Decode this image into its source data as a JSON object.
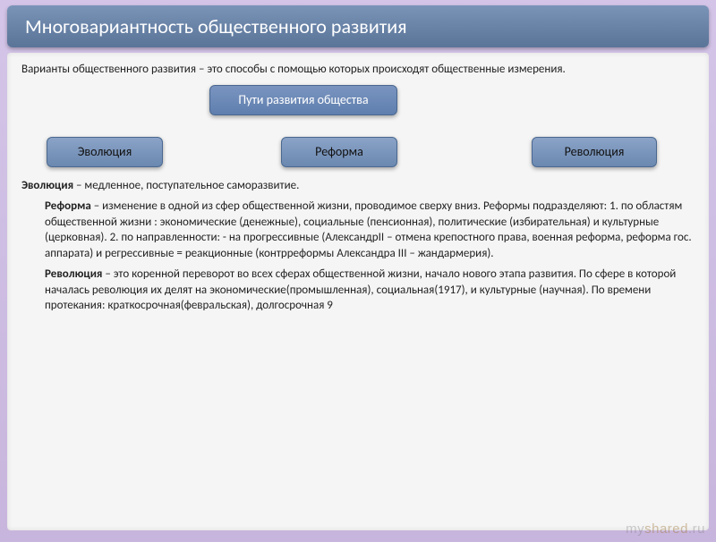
{
  "title": "Многовариантность общественного развития",
  "intro_term": "Варианты общественного развития",
  "intro_rest": " – это способы с помощью которых происходят общественные измерения.",
  "diagram": {
    "root": "Пути развития общества",
    "left": "Эволюция",
    "mid": "Реформа",
    "right": "Революция"
  },
  "evolution_term": "Эволюция",
  "evolution_rest": " – медленное, поступательное саморазвитие.",
  "reform_term": "Реформа",
  "reform_rest": " – изменение в одной из сфер общественной жизни, проводимое сверху вниз. Реформы подразделяют: 1. по областям общественной жизни : экономические (денежные), социальные (пенсионная), политические (избирательная) и культурные (церковная). 2. по направленности: - на прогрессивные (АлександрII – отмена крепостного права, военная реформа, реформа гос. аппарата) и регрессивные = реакционные (контрреформы Александра III – жандармерия).",
  "revolution_term": "Революция",
  "revolution_rest": " – это коренной переворот во всех сферах общественной жизни, начало нового этапа развития. По сфере в которой началась революция их делят на экономические(промышленная), социальная(1917),  и культурные (научная). По времени протекания: краткосрочная(февральская), долгосрочная 9",
  "watermark_my": "my",
  "watermark_shared": "shared",
  "watermark_ru": ".ru",
  "colors": {
    "bg_gradient_top": "#d4c5e8",
    "bg_gradient_bottom": "#c8b5dd",
    "title_bg_top": "#7a94b8",
    "title_bg_bottom": "#5a7498",
    "title_text": "#ffffff",
    "content_bg": "#f5f5f5",
    "node_bg_top": "#8ba3c7",
    "node_bg_bottom": "#6b88b0",
    "node_border": "#4a6890",
    "body_text": "#222222"
  },
  "fontsize": {
    "title": 22,
    "body": 13,
    "node": 14,
    "watermark": 15
  }
}
